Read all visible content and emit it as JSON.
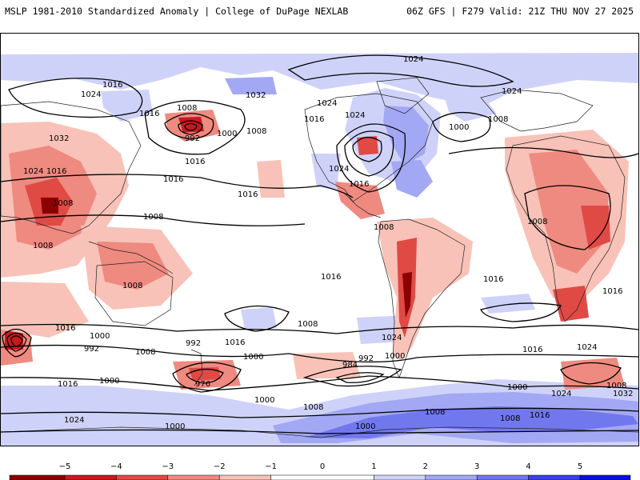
{
  "header": {
    "left": "MSLP 1981-2010 Standardized Anomaly | College of DuPage NEXLAB",
    "right": "06Z GFS | F279 Valid: 21Z THU NOV 27 2025"
  },
  "colors": {
    "neg5": "#8b0000",
    "neg4": "#c8191e",
    "neg3": "#e04a45",
    "neg2": "#ef8a80",
    "neg1": "#f8c2b8",
    "pos1": "#cfd2f8",
    "pos2": "#a3a8f4",
    "pos3": "#7178ee",
    "pos4": "#3b40e6",
    "pos5": "#0a12d8",
    "coast": "#222222",
    "isobar": "#000000"
  },
  "colorbar": {
    "ticks": [
      "−5",
      "−4",
      "−3",
      "−2",
      "−1",
      "0",
      "1",
      "2",
      "3",
      "4",
      "5"
    ]
  },
  "isobar_labels": [
    "1024",
    "1016",
    "1024",
    "1008",
    "1016",
    "992",
    "1000",
    "1008",
    "1032",
    "1024",
    "1016",
    "1024",
    "1024",
    "1000",
    "1008",
    "1032",
    "1024",
    "1016",
    "1008",
    "1016",
    "1024",
    "1016",
    "1016",
    "1016",
    "1008",
    "1008",
    "1008",
    "1008",
    "1016",
    "1008",
    "1016",
    "1016",
    "1016",
    "1000",
    "992",
    "1008",
    "1024",
    "992",
    "984",
    "1000",
    "1008",
    "1000",
    "992",
    "1016",
    "1000",
    "976",
    "1016",
    "1000",
    "1008",
    "1008",
    "1024",
    "1000",
    "1016",
    "1024",
    "1008",
    "1016",
    "1032",
    "1008",
    "1000",
    "1000",
    "1024"
  ]
}
